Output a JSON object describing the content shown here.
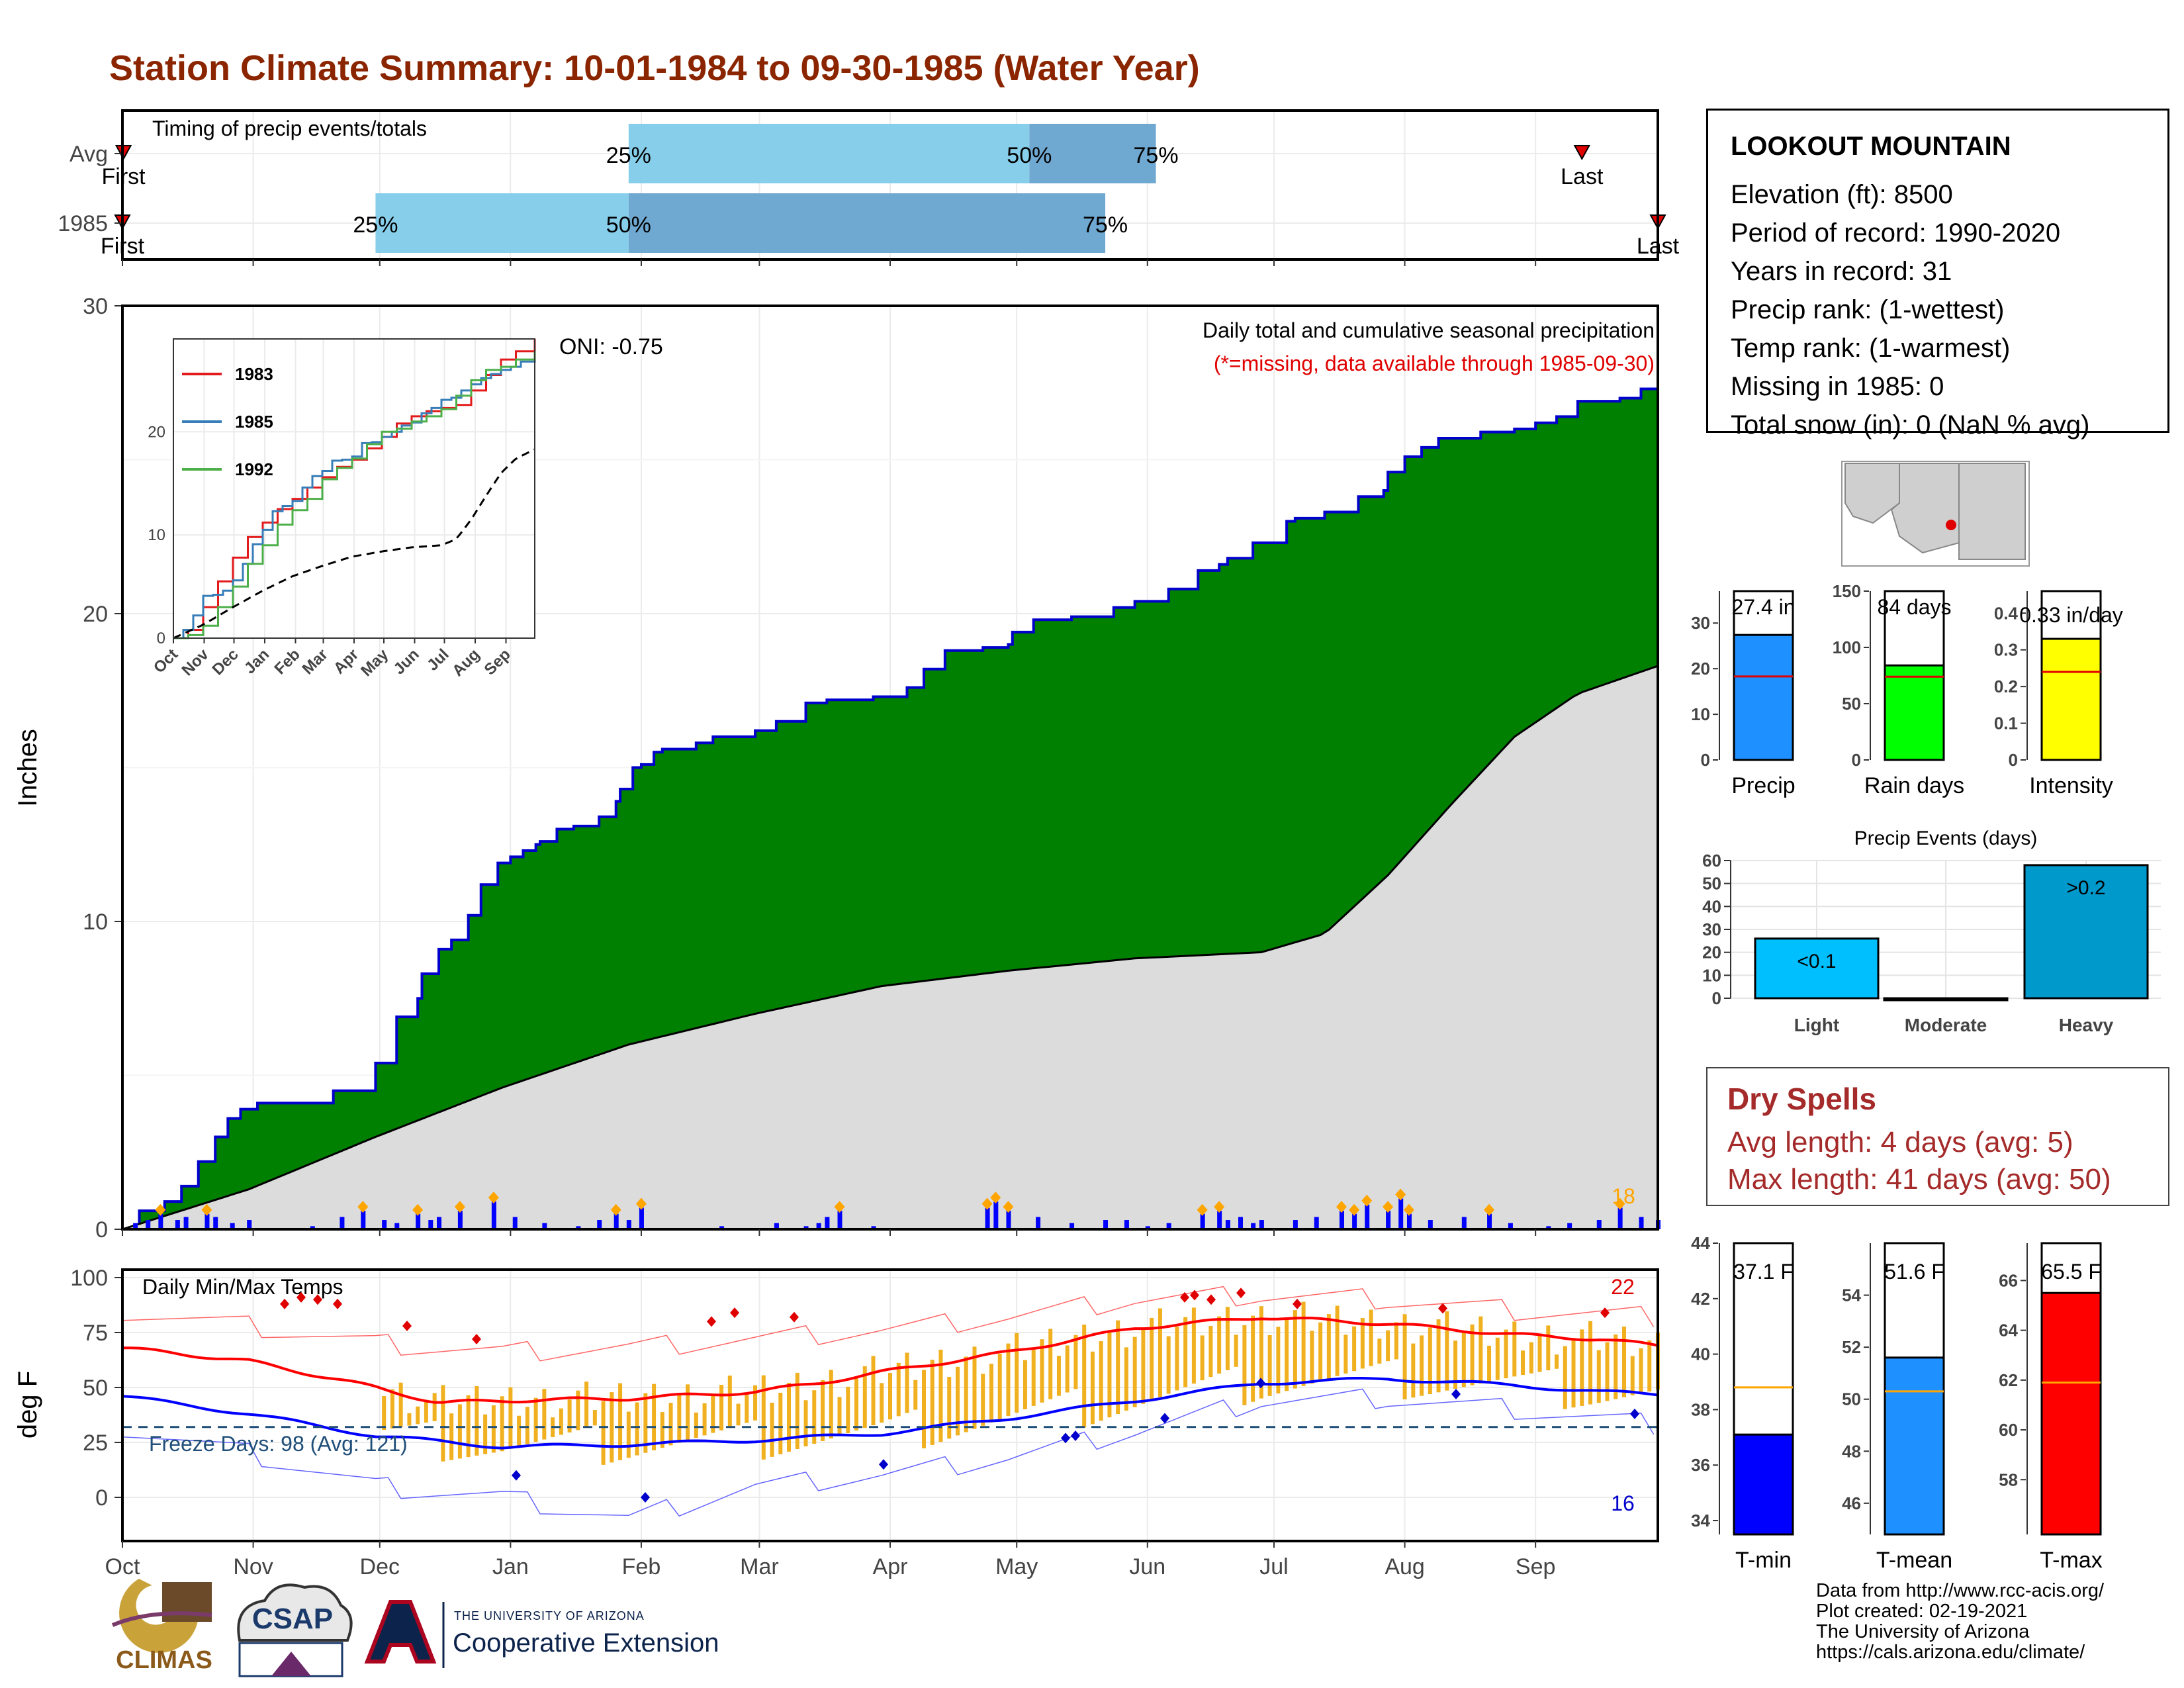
{
  "title": "Station Climate Summary: 10-01-1984 to 09-30-1985 (Water Year)",
  "timing": {
    "label": "Timing of precip events/totals",
    "rows": [
      {
        "name": "Avg",
        "first_label": "First",
        "last_label": "Last",
        "first": 0.25,
        "p25": 120,
        "p50": 215,
        "p75": 245,
        "last": 346
      },
      {
        "name": "1985",
        "first_label": "First",
        "last_label": "Last",
        "first": 0,
        "p25": 60,
        "p50": 120,
        "p75": 233,
        "last": 364
      }
    ],
    "pct_labels": [
      "25%",
      "50%",
      "75%"
    ],
    "colors": {
      "light": "#87ceeb",
      "dark": "#6fa8d0",
      "marker": "#e00000"
    }
  },
  "chart_data": [
    {
      "type": "area",
      "title": "Daily total and cumulative seasonal precipitation",
      "subtitle": "(*=missing, data available through 1985-09-30)",
      "ylabel": "Inches",
      "ylim": [
        0,
        30
      ],
      "yticks": [
        0,
        10,
        20,
        30
      ],
      "xlim_days": [
        0,
        364
      ],
      "x_month_labels": [
        "Oct",
        "Nov",
        "Dec",
        "Jan",
        "Feb",
        "Mar",
        "Apr",
        "May",
        "Jun",
        "Jul",
        "Aug",
        "Sep"
      ],
      "x_month_days": [
        0,
        31,
        61,
        92,
        123,
        151,
        182,
        212,
        243,
        273,
        304,
        335
      ],
      "oni": "ONI: -0.75",
      "count_label": "18",
      "series": [
        {
          "name": "1985 cumulative",
          "color": "#008000",
          "x": [
            0,
            4,
            10,
            14,
            18,
            22,
            25,
            28,
            32,
            38,
            50,
            60,
            65,
            70,
            71,
            75,
            78,
            82,
            85,
            89,
            92,
            95,
            98,
            99,
            103,
            107,
            113,
            117,
            118,
            121,
            123,
            126,
            128,
            136,
            140,
            150,
            155,
            162,
            167,
            172,
            178,
            186,
            190,
            195,
            204,
            208,
            210,
            211,
            216,
            225,
            235,
            240,
            248,
            255,
            260,
            262,
            268,
            276,
            278,
            285,
            293,
            299,
            300,
            304,
            308,
            312,
            322,
            330,
            335,
            340,
            345,
            355,
            360,
            364
          ],
          "values": [
            0,
            0.6,
            0.9,
            1.4,
            2.2,
            3.0,
            3.6,
            3.9,
            4.1,
            4.1,
            4.5,
            5.4,
            6.9,
            7.5,
            8.3,
            9.1,
            9.4,
            10.2,
            11.2,
            11.9,
            12.1,
            12.3,
            12.5,
            12.6,
            13.0,
            13.1,
            13.4,
            13.9,
            14.3,
            15.0,
            15.1,
            15.5,
            15.6,
            15.8,
            16.0,
            16.2,
            16.5,
            17.1,
            17.2,
            17.2,
            17.3,
            17.6,
            18.2,
            18.8,
            18.9,
            18.9,
            19.0,
            19.4,
            19.8,
            19.9,
            20.2,
            20.4,
            20.8,
            21.4,
            21.6,
            21.8,
            22.3,
            23.0,
            23.1,
            23.3,
            23.8,
            24.0,
            24.6,
            25.1,
            25.4,
            25.7,
            25.9,
            26.0,
            26.2,
            26.4,
            26.9,
            27.0,
            27.3,
            27.4
          ]
        },
        {
          "name": "Avg cumulative",
          "color": "#dcdcdc",
          "x": [
            0,
            30,
            60,
            90,
            120,
            150,
            180,
            210,
            240,
            270,
            285,
            300,
            315,
            330,
            345,
            364
          ],
          "values": [
            0,
            1.3,
            3.0,
            4.6,
            6.0,
            7.0,
            7.9,
            8.4,
            8.8,
            9.0,
            9.6,
            11.5,
            13.8,
            16.0,
            17.4,
            18.3
          ]
        },
        {
          "name": "Daily precip",
          "color": "#0000ff",
          "x": [
            3,
            6,
            9,
            13,
            15,
            20,
            22,
            26,
            30,
            45,
            52,
            57,
            62,
            65,
            70,
            73,
            75,
            80,
            88,
            93,
            100,
            108,
            113,
            117,
            120,
            123,
            142,
            155,
            162,
            165,
            167,
            170,
            178,
            205,
            207,
            210,
            217,
            225,
            233,
            238,
            243,
            248,
            256,
            260,
            262,
            265,
            268,
            270,
            278,
            283,
            289,
            292,
            295,
            300,
            303,
            305,
            310,
            318,
            324,
            329,
            338,
            343,
            350,
            355,
            360,
            364
          ],
          "values": [
            0.2,
            0.3,
            0.5,
            0.3,
            0.4,
            0.5,
            0.4,
            0.2,
            0.3,
            0.1,
            0.4,
            0.6,
            0.3,
            0.2,
            0.5,
            0.3,
            0.4,
            0.6,
            0.9,
            0.4,
            0.2,
            0.1,
            0.3,
            0.5,
            0.3,
            0.7,
            0.1,
            0.2,
            0.1,
            0.2,
            0.4,
            0.6,
            0.1,
            0.7,
            0.9,
            0.6,
            0.4,
            0.2,
            0.3,
            0.3,
            0.1,
            0.2,
            0.5,
            0.6,
            0.3,
            0.4,
            0.2,
            0.3,
            0.3,
            0.4,
            0.6,
            0.5,
            0.8,
            0.6,
            1.0,
            0.5,
            0.3,
            0.4,
            0.5,
            0.2,
            0.1,
            0.2,
            0.3,
            0.7,
            0.4,
            0.3
          ]
        }
      ]
    },
    {
      "type": "line",
      "title": "",
      "yticks": [
        0,
        10,
        20
      ],
      "ylim": [
        0,
        29
      ],
      "x_month_labels": [
        "Oct",
        "Nov",
        "Dec",
        "Jan",
        "Feb",
        "Mar",
        "Apr",
        "May",
        "Jun",
        "Jul",
        "Aug",
        "Sep"
      ],
      "series": [
        {
          "name": "1983",
          "color": "#e31a1c",
          "x": [
            0,
            15,
            30,
            45,
            60,
            75,
            90,
            105,
            120,
            135,
            150,
            165,
            180,
            195,
            210,
            225,
            240,
            255,
            270,
            285,
            300,
            315,
            330,
            345,
            364
          ],
          "values": [
            0,
            0.8,
            3.0,
            5.5,
            7.8,
            9.8,
            11.2,
            12.5,
            13.5,
            14.6,
            15.6,
            16.6,
            17.3,
            18.4,
            19.5,
            20.8,
            21.5,
            22.0,
            22.3,
            22.6,
            24.0,
            25.5,
            27.0,
            27.8,
            29.0
          ]
        },
        {
          "name": "1985",
          "color": "#377eb8",
          "x": [
            0,
            10,
            20,
            30,
            40,
            50,
            60,
            70,
            80,
            90,
            100,
            110,
            120,
            130,
            140,
            150,
            160,
            170,
            180,
            190,
            200,
            210,
            220,
            230,
            240,
            250,
            260,
            270,
            280,
            290,
            300,
            310,
            320,
            330,
            340,
            350,
            364
          ],
          "values": [
            0,
            0.8,
            2.2,
            4.1,
            4.2,
            4.6,
            5.6,
            7.2,
            9.1,
            10.5,
            12.3,
            12.8,
            13.3,
            14.6,
            15.7,
            16.2,
            17.2,
            17.3,
            17.6,
            18.9,
            19.0,
            19.5,
            20.0,
            20.6,
            20.9,
            21.8,
            22.3,
            23.1,
            23.3,
            24.0,
            24.6,
            25.2,
            25.6,
            26.0,
            26.3,
            26.8,
            27.4
          ]
        },
        {
          "name": "1992",
          "color": "#4daf4a",
          "x": [
            0,
            15,
            30,
            45,
            60,
            75,
            90,
            105,
            120,
            135,
            150,
            165,
            180,
            195,
            210,
            225,
            240,
            255,
            270,
            285,
            300,
            315,
            330,
            345,
            364
          ],
          "values": [
            0,
            0.3,
            1.2,
            3.0,
            5.0,
            7.2,
            9.0,
            11.0,
            12.4,
            13.5,
            15.4,
            16.5,
            17.4,
            18.8,
            20.0,
            20.3,
            21.0,
            21.5,
            22.2,
            23.5,
            25.0,
            26.0,
            26.3,
            27.0,
            27.8
          ]
        },
        {
          "name": "Avg",
          "color": "#000000",
          "x": [
            0,
            30,
            60,
            90,
            120,
            150,
            180,
            210,
            240,
            270,
            285,
            300,
            315,
            330,
            345,
            364
          ],
          "values": [
            0,
            1.3,
            3.0,
            4.6,
            6.0,
            7.0,
            7.9,
            8.4,
            8.8,
            9.0,
            9.6,
            11.5,
            13.8,
            16.0,
            17.4,
            18.3
          ]
        }
      ]
    },
    {
      "type": "bar",
      "title": "",
      "categories": [
        "Precip",
        "Rain days",
        "Intensity"
      ],
      "values": [
        27.4,
        84,
        0.33
      ],
      "value_labels": [
        "27.4 in",
        "84 days",
        "0.33 in/day"
      ],
      "avg": [
        18.3,
        74,
        0.24
      ],
      "ylims": [
        [
          0,
          37
        ],
        [
          0,
          150
        ],
        [
          0,
          0.46
        ]
      ],
      "yticks": [
        [
          0,
          10,
          20,
          30
        ],
        [
          0,
          50,
          100,
          150
        ],
        [
          0,
          0.1,
          0.2,
          0.3,
          0.4
        ]
      ],
      "colors": [
        "#1e90ff",
        "#00ff00",
        "#ffff00"
      ]
    },
    {
      "type": "bar",
      "title": "Precip Events (days)",
      "categories": [
        "Light",
        "Moderate",
        "Heavy"
      ],
      "values": [
        26,
        0,
        58
      ],
      "value_labels": [
        "<0.1",
        "",
        ">0.2"
      ],
      "ylim": [
        0,
        60
      ],
      "yticks": [
        0,
        10,
        20,
        30,
        40,
        50,
        60
      ],
      "colors": [
        "#00bfff",
        "#00bfff",
        "#0099cc"
      ]
    },
    {
      "type": "line",
      "title": "Daily Min/Max Temps",
      "ylabel": "deg F",
      "ylim": [
        -20,
        100
      ],
      "yticks": [
        0,
        25,
        50,
        75,
        100
      ],
      "x_month_labels": [
        "Oct",
        "Nov",
        "Dec",
        "Jan",
        "Feb",
        "Mar",
        "Apr",
        "May",
        "Jun",
        "Jul",
        "Aug",
        "Sep"
      ],
      "freeze_label": "Freeze Days: 98 (Avg: 121)",
      "freeze_line": 32,
      "max_count_label": "22",
      "min_count_label": "16",
      "series": [
        {
          "name": "Avg max",
          "color": "#ff0000",
          "x": [
            0,
            30,
            60,
            75,
            90,
            120,
            150,
            165,
            180,
            210,
            240,
            270,
            300,
            330,
            350,
            364
          ],
          "values": [
            68,
            62,
            50,
            43,
            44,
            45,
            48,
            52,
            57,
            66,
            77,
            82,
            79,
            74,
            72,
            69
          ]
        },
        {
          "name": "Avg min",
          "color": "#0000ff",
          "x": [
            0,
            30,
            60,
            90,
            120,
            150,
            180,
            210,
            240,
            270,
            300,
            330,
            350,
            364
          ],
          "values": [
            46,
            38,
            28,
            23,
            24,
            26,
            29,
            36,
            44,
            52,
            54,
            51,
            48,
            47
          ]
        },
        {
          "name": "Record max",
          "color": "#ff6666",
          "x": [
            0,
            30,
            60,
            90,
            120,
            150,
            180,
            210,
            240,
            270,
            300,
            330,
            364
          ],
          "values": [
            85,
            78,
            70,
            66,
            68,
            72,
            76,
            82,
            90,
            92,
            90,
            85,
            82
          ]
        },
        {
          "name": "Record min",
          "color": "#6666ff",
          "x": [
            0,
            30,
            60,
            90,
            120,
            150,
            180,
            210,
            240,
            270,
            300,
            330,
            364
          ],
          "values": [
            32,
            20,
            5,
            0,
            -10,
            5,
            10,
            18,
            30,
            44,
            45,
            40,
            33
          ]
        }
      ]
    },
    {
      "type": "bar",
      "title": "",
      "categories": [
        "T-min",
        "T-mean",
        "T-max"
      ],
      "values": [
        37.1,
        51.6,
        65.5
      ],
      "value_labels": [
        "37.1 F",
        "51.6 F",
        "65.5 F"
      ],
      "avg": [
        38.8,
        50.3,
        61.9
      ],
      "ylims": [
        [
          33.5,
          44
        ],
        [
          44.8,
          56
        ],
        [
          55.8,
          67.5
        ]
      ],
      "yticks": [
        [
          34,
          36,
          38,
          40,
          42,
          44
        ],
        [
          46,
          48,
          50,
          52,
          54
        ],
        [
          58,
          60,
          62,
          64,
          66
        ]
      ],
      "colors": [
        "#0000ff",
        "#1e90ff",
        "#ff0000"
      ]
    }
  ],
  "station": {
    "name": "LOOKOUT MOUNTAIN",
    "lines": [
      "Elevation (ft): 8500",
      "Period of record: 1990-2020",
      "Years in record: 31",
      "Precip rank:  (1-wettest)",
      "Temp rank:  (1-warmest)",
      "Missing in 1985: 0",
      "Total snow (in): 0 (NaN % avg)"
    ]
  },
  "dry_spells": {
    "title": "Dry Spells",
    "lines": [
      "Avg length: 4 days (avg: 5)",
      "Max length: 41 days (avg: 50)"
    ]
  },
  "footer": {
    "lines": [
      "Data from http://www.rcc-acis.org/",
      "Plot created: 02-19-2021",
      "The University of Arizona",
      "https://cals.arizona.edu/climate/"
    ]
  },
  "logos": {
    "climas": "CLIMAS",
    "csap": "CSAP",
    "ua_small": "THE UNIVERSITY OF ARIZONA",
    "ua_big": "Cooperative Extension",
    "ua_letter": "A"
  }
}
